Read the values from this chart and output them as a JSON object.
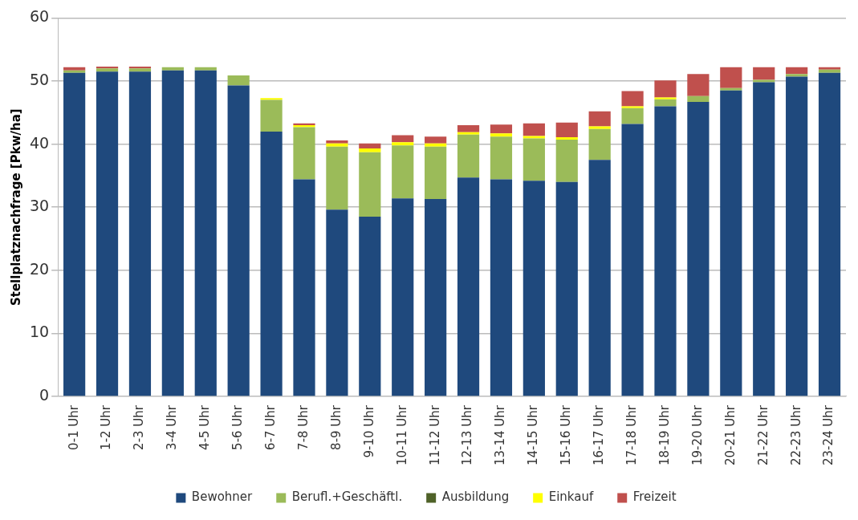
{
  "chart_data": {
    "type": "bar",
    "stacked": true,
    "ylabel": "Stellplatznachfrage [Pkw/ha]",
    "categories": [
      "0-1 Uhr",
      "1-2 Uhr",
      "2-3 Uhr",
      "3-4 Uhr",
      "4-5 Uhr",
      "5-6 Uhr",
      "6-7 Uhr",
      "7-8 Uhr",
      "8-9 Uhr",
      "9-10 Uhr",
      "10-11 Uhr",
      "11-12 Uhr",
      "12-13 Uhr",
      "13-14 Uhr",
      "14-15 Uhr",
      "15-16 Uhr",
      "16-17 Uhr",
      "17-18 Uhr",
      "18-19 Uhr",
      "19-20 Uhr",
      "20-21 Uhr",
      "21-22 Uhr",
      "22-23 Uhr",
      "23-24 Uhr"
    ],
    "series": [
      {
        "name": "Bewohner",
        "color": "#1f497d",
        "values": [
          51.3,
          51.5,
          51.5,
          51.7,
          51.7,
          49.3,
          42,
          34.4,
          29.6,
          28.5,
          31.4,
          31.3,
          34.7,
          34.4,
          34.2,
          34.0,
          37.5,
          43.2,
          46.0,
          46.7,
          48.5,
          49.8,
          50.7,
          51.3
        ]
      },
      {
        "name": "Berufl.+Geschäftl.",
        "color": "#9bbb59",
        "values": [
          0.4,
          0.5,
          0.5,
          0.5,
          0.5,
          1.6,
          5.0,
          8.3,
          10.0,
          10.2,
          8.4,
          8.3,
          6.8,
          6.8,
          6.7,
          6.7,
          4.9,
          2.5,
          1.1,
          0.9,
          0.4,
          0.4,
          0.4,
          0.5
        ]
      },
      {
        "name": "Ausbildung",
        "color": "#4f6228",
        "values": [
          0,
          0,
          0,
          0,
          0,
          0,
          0,
          0,
          0,
          0,
          0,
          0,
          0,
          0,
          0,
          0,
          0,
          0,
          0,
          0,
          0,
          0,
          0,
          0
        ]
      },
      {
        "name": "Einkauf",
        "color": "#ffff00",
        "values": [
          0,
          0,
          0,
          0,
          0,
          0,
          0.3,
          0.3,
          0.5,
          0.6,
          0.5,
          0.5,
          0.4,
          0.5,
          0.4,
          0.4,
          0.4,
          0.3,
          0.3,
          0,
          0,
          0,
          0,
          0
        ]
      },
      {
        "name": "Freizeit",
        "color": "#c0504d",
        "values": [
          0.5,
          0.3,
          0.3,
          0,
          0,
          0,
          0,
          0.3,
          0.5,
          0.8,
          1.1,
          1.1,
          1.1,
          1.4,
          2.0,
          2.3,
          2.4,
          2.4,
          2.7,
          3.5,
          3.3,
          2.0,
          1.1,
          0.4
        ]
      }
    ],
    "ylim": [
      0,
      60
    ],
    "yticks": [
      0,
      10,
      20,
      30,
      40,
      50,
      60
    ],
    "grid": "y",
    "legend": "bottom"
  }
}
